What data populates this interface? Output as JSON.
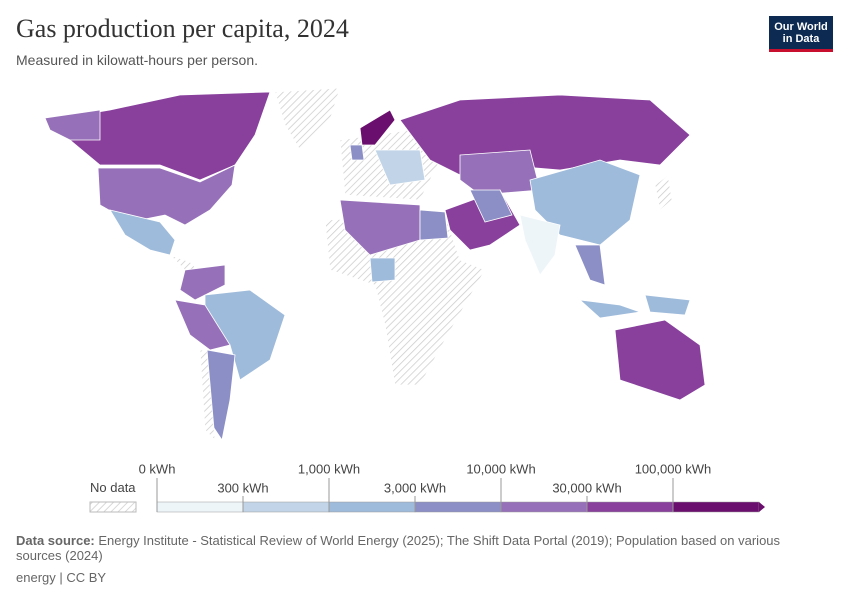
{
  "header": {
    "title": "Gas production per capita, 2024",
    "subtitle": "Measured in kilowatt-hours per person.",
    "logo": [
      "Our World",
      "in Data"
    ]
  },
  "legend": {
    "no_data": "No data",
    "ticks": [
      {
        "value": 0,
        "label": "0 kWh"
      },
      {
        "value": 300,
        "label": "300 kWh"
      },
      {
        "value": 1000,
        "label": "1,000 kWh"
      },
      {
        "value": 3000,
        "label": "3,000 kWh"
      },
      {
        "value": 10000,
        "label": "10,000 kWh"
      },
      {
        "value": 30000,
        "label": "30,000 kWh"
      },
      {
        "value": 100000,
        "label": "100,000 kWh"
      }
    ],
    "colors": [
      "#edf5f9",
      "#c2d5e8",
      "#9fbbdb",
      "#8b8fc6",
      "#9670b8",
      "#88409c",
      "#6a0f6e"
    ]
  },
  "footer": {
    "source_label": "Data source:",
    "source": "Energy Institute - Statistical Review of World Energy (2025); The Shift Data Portal (2019); Population based on various sources (2024)",
    "license": "energy | CC BY"
  }
}
